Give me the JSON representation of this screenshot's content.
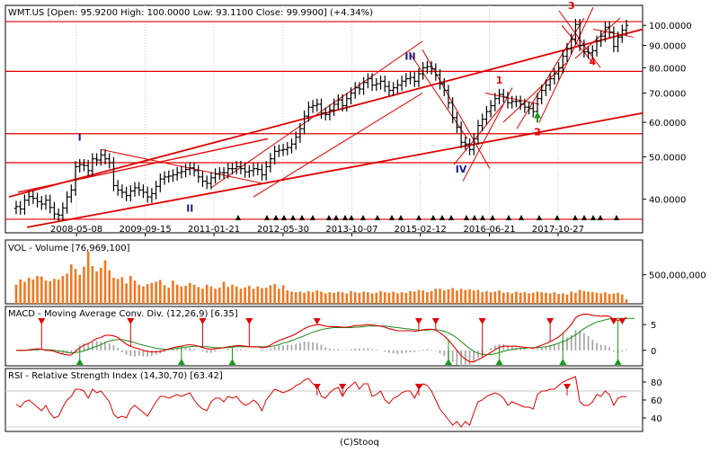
{
  "footer": "(C)Stooq",
  "colors": {
    "price_bar": "#000000",
    "trend_line": "#e00000",
    "volume_bar": "#f07820",
    "macd_line": "#e00000",
    "signal_line": "#1a8a1a",
    "histogram": "#a8a8a8",
    "rsi_line": "#e00000",
    "buy_marker": "#1a9a1a",
    "sell_marker": "#e00000",
    "wave_label": "#1a1a8c",
    "wave_label_alt": "#e00000",
    "guide_line": "#c8c8c8"
  },
  "chart_data": [
    {
      "type": "ohlc",
      "title": "WMT.US [Open: 95.9200  High: 100.0000  Low: 93.1100  Close: 99.9900]  (+4.34%)",
      "scale": "log",
      "ylim": [
        34,
        108
      ],
      "xlabel": "",
      "ylabel": "",
      "x_ticks": [
        "2008-05-08",
        "2009-09-15",
        "2011-01-21",
        "2012-05-30",
        "2013-10-07",
        "2015-02-12",
        "2016-06-21",
        "2017-10-27"
      ],
      "y_ticks": [
        "40.0000",
        "50.0000",
        "60.0000",
        "70.0000",
        "80.0000",
        "90.0000",
        "100.0000"
      ],
      "y_tick_values": [
        40,
        50,
        60,
        70,
        80,
        90,
        100
      ],
      "period_start": "2007-03-01",
      "period_end": "2019-02-28",
      "interval": "monthly",
      "close": [
        38.5,
        38.0,
        39.8,
        40.6,
        40.2,
        39.5,
        39.0,
        39.8,
        38.3,
        37.0,
        36.8,
        38.2,
        40.5,
        42.0,
        47.5,
        48.0,
        47.8,
        46.5,
        49.5,
        49.2,
        50.5,
        49.5,
        48.5,
        43.0,
        42.0,
        41.5,
        40.8,
        41.8,
        42.5,
        42.0,
        41.5,
        40.5,
        41.2,
        42.8,
        44.5,
        45.0,
        45.2,
        45.5,
        46.0,
        46.3,
        46.8,
        47.2,
        46.5,
        45.0,
        44.0,
        43.5,
        44.8,
        45.7,
        46.0,
        46.0,
        47.0,
        47.0,
        47.5,
        47.0,
        46.2,
        46.5,
        47.0,
        46.8,
        45.5,
        47.5,
        49.5,
        51.5,
        51.8,
        52.0,
        52.5,
        53.5,
        55.5,
        58.0,
        62.0,
        65.0,
        65.5,
        66.0,
        63.0,
        62.5,
        64.0,
        66.0,
        67.5,
        65.5,
        68.0,
        70.0,
        72.0,
        71.5,
        74.0,
        75.5,
        73.0,
        73.5,
        74.5,
        72.5,
        71.0,
        72.0,
        73.0,
        74.5,
        75.5,
        76.0,
        74.5,
        77.5,
        80.0,
        80.5,
        79.5,
        77.0,
        73.5,
        71.0,
        66.5,
        61.5,
        58.5,
        54.0,
        53.5,
        52.0,
        55.0,
        59.0,
        61.0,
        63.5,
        65.5,
        68.0,
        69.5,
        68.5,
        66.5,
        67.0,
        67.0,
        66.0,
        65.0,
        64.5,
        63.5,
        68.0,
        71.0,
        73.0,
        75.5,
        77.5,
        80.0,
        85.0,
        88.5,
        93.0,
        100.5,
        90.0,
        87.0,
        86.5,
        87.5,
        92.0,
        94.5,
        99.0,
        96.5,
        89.5,
        94.0,
        97.5,
        99.99
      ],
      "annotations": {
        "wave_labels_roman": [
          "I",
          "II",
          "III",
          "IV"
        ],
        "wave_labels_numeric": [
          "1",
          "2",
          "3",
          "4"
        ]
      }
    },
    {
      "type": "bar",
      "title": "VOL - Volume [76,969,100]",
      "ylim": [
        0,
        1100000000
      ],
      "y_ticks": [
        "500,000,000"
      ],
      "y_tick_values": [
        500000000
      ],
      "values": [
        330000000,
        420000000,
        380000000,
        450000000,
        420000000,
        480000000,
        470000000,
        400000000,
        390000000,
        430000000,
        420000000,
        480000000,
        520000000,
        680000000,
        600000000,
        500000000,
        640000000,
        900000000,
        650000000,
        560000000,
        620000000,
        750000000,
        580000000,
        450000000,
        430000000,
        460000000,
        350000000,
        480000000,
        400000000,
        330000000,
        300000000,
        340000000,
        360000000,
        380000000,
        410000000,
        320000000,
        280000000,
        400000000,
        330000000,
        300000000,
        310000000,
        360000000,
        330000000,
        290000000,
        260000000,
        330000000,
        300000000,
        260000000,
        280000000,
        380000000,
        290000000,
        330000000,
        300000000,
        260000000,
        280000000,
        310000000,
        260000000,
        300000000,
        270000000,
        280000000,
        320000000,
        340000000,
        260000000,
        320000000,
        230000000,
        210000000,
        200000000,
        210000000,
        190000000,
        220000000,
        200000000,
        230000000,
        210000000,
        180000000,
        200000000,
        190000000,
        210000000,
        200000000,
        180000000,
        220000000,
        200000000,
        190000000,
        210000000,
        200000000,
        180000000,
        190000000,
        220000000,
        200000000,
        190000000,
        210000000,
        180000000,
        200000000,
        190000000,
        220000000,
        210000000,
        240000000,
        230000000,
        200000000,
        220000000,
        260000000,
        260000000,
        230000000,
        250000000,
        270000000,
        230000000,
        260000000,
        240000000,
        250000000,
        230000000,
        240000000,
        200000000,
        220000000,
        200000000,
        210000000,
        230000000,
        190000000,
        200000000,
        180000000,
        210000000,
        190000000,
        200000000,
        180000000,
        190000000,
        210000000,
        200000000,
        190000000,
        180000000,
        200000000,
        170000000,
        180000000,
        160000000,
        210000000,
        190000000,
        240000000,
        220000000,
        210000000,
        200000000,
        190000000,
        180000000,
        200000000,
        170000000,
        180000000,
        190000000,
        160000000,
        77000000
      ]
    },
    {
      "type": "line",
      "title": "MACD - Moving Average Conv. Div. (12,26,9) [6.35]",
      "ylim": [
        -3,
        8.5
      ],
      "y_ticks": [
        "5",
        "0"
      ],
      "y_tick_values": [
        5,
        0
      ],
      "series": [
        {
          "name": "MACD",
          "values": [
            0.0,
            0.0,
            0.0,
            0.1,
            0.2,
            0.3,
            0.2,
            0.0,
            0.0,
            -0.2,
            -0.5,
            -0.7,
            -0.9,
            -0.9,
            -0.2,
            0.5,
            1.0,
            1.3,
            1.8,
            2.3,
            2.5,
            2.9,
            2.9,
            2.8,
            2.5,
            1.8,
            1.2,
            0.8,
            0.5,
            0.3,
            0.0,
            -0.2,
            -0.3,
            -0.3,
            -0.2,
            0.0,
            0.3,
            0.5,
            0.7,
            0.8,
            1.0,
            1.1,
            1.0,
            0.8,
            0.5,
            0.3,
            0.2,
            0.3,
            0.4,
            0.5,
            0.7,
            0.8,
            0.9,
            0.9,
            0.8,
            0.7,
            0.7,
            0.7,
            0.5,
            0.6,
            1.0,
            1.5,
            1.9,
            2.2,
            2.5,
            2.8,
            3.2,
            3.7,
            4.2,
            4.6,
            4.8,
            5.0,
            4.9,
            4.7,
            4.6,
            4.6,
            4.6,
            4.5,
            4.5,
            4.6,
            4.8,
            4.8,
            4.9,
            5.0,
            4.9,
            4.8,
            4.7,
            4.5,
            4.2,
            4.0,
            3.8,
            3.8,
            3.8,
            3.8,
            3.7,
            3.8,
            4.0,
            4.1,
            4.1,
            3.9,
            3.4,
            2.8,
            2.0,
            1.0,
            0.0,
            -1.0,
            -1.7,
            -2.2,
            -2.2,
            -1.8,
            -1.4,
            -0.9,
            -0.4,
            0.1,
            0.6,
            0.8,
            0.8,
            0.8,
            0.8,
            0.7,
            0.6,
            0.5,
            0.4,
            0.7,
            1.0,
            1.3,
            1.7,
            2.1,
            2.6,
            3.3,
            4.1,
            5.0,
            6.3,
            6.8,
            7.0,
            7.0,
            6.8,
            6.7,
            6.6,
            6.7,
            6.6,
            6.0,
            5.8,
            6.0,
            6.35
          ]
        },
        {
          "name": "Signal",
          "values": [
            0.0,
            0.0,
            0.0,
            0.0,
            0.1,
            0.1,
            0.2,
            0.1,
            0.1,
            0.0,
            -0.1,
            -0.2,
            -0.4,
            -0.5,
            -0.4,
            -0.3,
            -0.1,
            0.2,
            0.5,
            0.8,
            1.1,
            1.5,
            1.8,
            2.0,
            2.1,
            2.1,
            1.9,
            1.7,
            1.5,
            1.2,
            1.0,
            0.8,
            0.6,
            0.4,
            0.3,
            0.2,
            0.2,
            0.3,
            0.4,
            0.5,
            0.6,
            0.7,
            0.8,
            0.8,
            0.7,
            0.7,
            0.6,
            0.5,
            0.5,
            0.5,
            0.5,
            0.6,
            0.7,
            0.7,
            0.7,
            0.7,
            0.7,
            0.7,
            0.7,
            0.7,
            0.7,
            0.9,
            1.1,
            1.4,
            1.6,
            1.9,
            2.2,
            2.5,
            2.8,
            3.2,
            3.5,
            3.8,
            4.0,
            4.2,
            4.3,
            4.4,
            4.4,
            4.4,
            4.4,
            4.4,
            4.5,
            4.5,
            4.6,
            4.7,
            4.7,
            4.7,
            4.7,
            4.7,
            4.6,
            4.5,
            4.4,
            4.3,
            4.2,
            4.1,
            4.0,
            3.9,
            3.9,
            3.9,
            4.0,
            4.0,
            3.9,
            3.7,
            3.4,
            2.9,
            2.4,
            1.7,
            1.0,
            0.4,
            -0.2,
            -0.6,
            -0.8,
            -0.8,
            -0.8,
            -0.7,
            -0.4,
            -0.2,
            0.0,
            0.2,
            0.3,
            0.4,
            0.4,
            0.5,
            0.5,
            0.5,
            0.6,
            0.7,
            0.9,
            1.1,
            1.4,
            1.7,
            2.0,
            2.5,
            3.0,
            3.6,
            4.2,
            4.7,
            5.1,
            5.5,
            5.7,
            5.9,
            6.1,
            6.2,
            6.2,
            6.2,
            6.2,
            6.2,
            6.2
          ]
        }
      ],
      "buy_signal_months": [
        "2008-06",
        "2010-06",
        "2011-06",
        "2015-09",
        "2016-09",
        "2017-12",
        "2019-01"
      ],
      "sell_signal_months": [
        "2007-09",
        "2009-06",
        "2010-11",
        "2011-10",
        "2013-02",
        "2015-02",
        "2015-06",
        "2016-05",
        "2017-09",
        "2018-12",
        "2019-02"
      ]
    },
    {
      "type": "line",
      "title": "RSI - Relative Strength Index (14,30,70) [63.42]",
      "ylim": [
        25,
        95
      ],
      "y_ticks": [
        "80",
        "60",
        "40"
      ],
      "y_tick_values": [
        80,
        60,
        40
      ],
      "thresholds": [
        30,
        70
      ],
      "series": [
        {
          "name": "RSI",
          "values": [
            55,
            52,
            58,
            60,
            56,
            52,
            48,
            54,
            45,
            40,
            42,
            52,
            60,
            64,
            72,
            72,
            70,
            62,
            72,
            68,
            70,
            64,
            58,
            44,
            40,
            42,
            40,
            50,
            54,
            50,
            46,
            42,
            50,
            58,
            64,
            64,
            62,
            64,
            66,
            64,
            66,
            68,
            60,
            54,
            50,
            48,
            58,
            62,
            62,
            58,
            64,
            62,
            64,
            58,
            54,
            56,
            60,
            56,
            48,
            60,
            66,
            72,
            70,
            68,
            70,
            72,
            76,
            78,
            82,
            84,
            78,
            76,
            64,
            62,
            68,
            72,
            74,
            64,
            72,
            76,
            80,
            72,
            78,
            78,
            64,
            66,
            70,
            60,
            56,
            62,
            64,
            68,
            70,
            70,
            62,
            72,
            78,
            76,
            70,
            60,
            50,
            44,
            38,
            32,
            36,
            30,
            36,
            32,
            46,
            58,
            60,
            64,
            66,
            68,
            66,
            62,
            54,
            58,
            56,
            54,
            52,
            52,
            50,
            66,
            70,
            70,
            72,
            72,
            76,
            80,
            82,
            84,
            86,
            58,
            54,
            54,
            58,
            66,
            64,
            70,
            66,
            54,
            62,
            64,
            63.42
          ]
        }
      ],
      "sell_signal_months": [
        "2013-02",
        "2013-08",
        "2015-02",
        "2018-01"
      ]
    }
  ]
}
